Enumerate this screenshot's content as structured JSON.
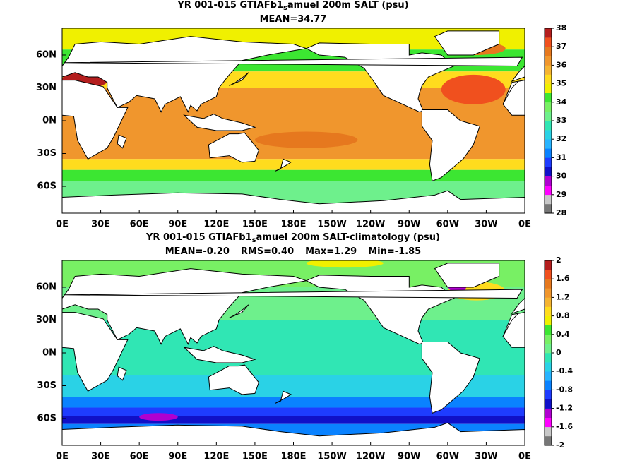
{
  "panels": [
    {
      "title": {
        "before": "YR 001-015 GTIAFb1",
        "subscript": "s",
        "after": "amuel 200m SALT (psu)"
      },
      "stats": [
        "MEAN=34.77"
      ],
      "lat_labels": [
        "60N",
        "30N",
        "0N",
        "30S",
        "60S"
      ],
      "lon_labels": [
        "0E",
        "30E",
        "60E",
        "90E",
        "120E",
        "150E",
        "180E",
        "150W",
        "120W",
        "90W",
        "60W",
        "30W",
        "0E"
      ],
      "colorbar": {
        "clim": [
          28,
          38
        ],
        "ticks": [
          38,
          37,
          36,
          35,
          34,
          33,
          32,
          31,
          30,
          29,
          28
        ],
        "colors": [
          "#777777",
          "#c8c8c8",
          "#ff00ff",
          "#b000d0",
          "#1010c8",
          "#1e3cff",
          "#0a82ff",
          "#28b4ff",
          "#2ad2e6",
          "#30e6b4",
          "#6ef08c",
          "#78f064",
          "#3ce632",
          "#f0f000",
          "#ffdc1e",
          "#f5b432",
          "#f0962d",
          "#e6781e",
          "#f0501e",
          "#b41e1e"
        ]
      }
    },
    {
      "title": {
        "before": "YR 001-015 GTIAFb1",
        "subscript": "s",
        "after": "amuel 200m SALT-climatology (psu)"
      },
      "stats": [
        "MEAN=-0.20",
        "RMS=0.40",
        "Max=1.29",
        "Min=-1.85"
      ],
      "lat_labels": [
        "60N",
        "30N",
        "0N",
        "30S",
        "60S"
      ],
      "lon_labels": [
        "0E",
        "30E",
        "60E",
        "90E",
        "120E",
        "150E",
        "180E",
        "150W",
        "120W",
        "90W",
        "60W",
        "30W",
        "0E"
      ],
      "colorbar": {
        "clim": [
          -2,
          2
        ],
        "ticks": [
          2,
          1.6,
          1.2,
          0.8,
          0.4,
          0,
          -0.4,
          -0.8,
          -1.2,
          -1.6,
          -2
        ],
        "colors": [
          "#777777",
          "#c8c8c8",
          "#ff00ff",
          "#b000d0",
          "#1010c8",
          "#1e3cff",
          "#0a82ff",
          "#28b4ff",
          "#2ad2e6",
          "#30e6b4",
          "#6ef08c",
          "#78f064",
          "#3ce632",
          "#f0f000",
          "#ffdc1e",
          "#f5b432",
          "#f0962d",
          "#e6781e",
          "#f0501e",
          "#b41e1e"
        ]
      }
    }
  ]
}
